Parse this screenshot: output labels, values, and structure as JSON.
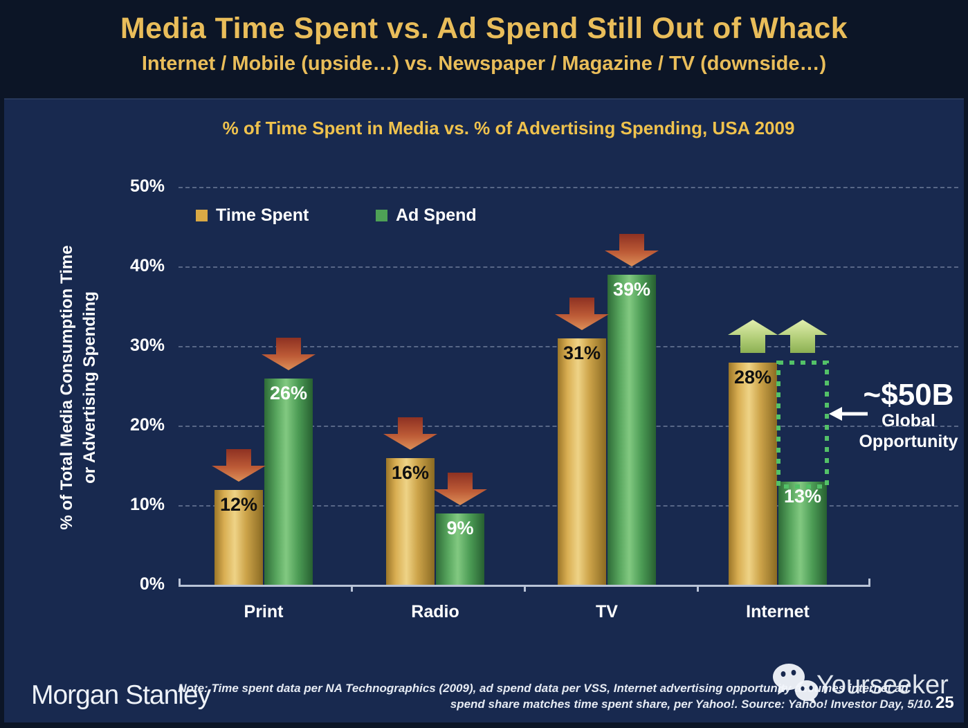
{
  "slide": {
    "title": "Media Time Spent vs. Ad Spend Still Out of Whack",
    "subtitle": "Internet / Mobile (upside…) vs. Newspaper / Magazine / TV (downside…)",
    "page_number": "25"
  },
  "chart_data": {
    "type": "bar",
    "title": "% of Time Spent in Media vs. % of Advertising Spending, USA 2009",
    "ylabel": [
      "% of Total Media Consumption Time",
      "or Advertising Spending"
    ],
    "categories": [
      "Print",
      "Radio",
      "TV",
      "Internet"
    ],
    "series": [
      {
        "name": "Time Spent",
        "color": "#d9a945",
        "label_color": "#101010",
        "values": [
          12,
          16,
          31,
          28
        ]
      },
      {
        "name": "Ad Spend",
        "color": "#4ea156",
        "label_color": "#ffffff",
        "values": [
          26,
          9,
          39,
          13
        ]
      }
    ],
    "value_suffix": "%",
    "ylim": [
      0,
      50
    ],
    "yticks": [
      "50%",
      "40%",
      "30%",
      "20%",
      "10%",
      "0%"
    ],
    "grid": "horizontal-dashed",
    "legend_position": "top-left-inside",
    "trend_arrows": [
      "down",
      "down",
      "down",
      "up"
    ],
    "arrow_colors": {
      "down": "#c2543a",
      "up": "#b4d172"
    },
    "annotation": {
      "value": "~$50B",
      "line1": "Global",
      "line2": "Opportunity"
    }
  },
  "footer": {
    "logo": "Morgan Stanley",
    "note_line1": "Note: Time spent data per NA Technographics (2009), ad spend data per VSS, Internet advertising opportunity assumes internet ad",
    "note_line2": "spend share matches time spent share, per Yahoo!. Source: Yahoo! Investor Day, 5/10.",
    "watermark": "Yourseeker"
  }
}
